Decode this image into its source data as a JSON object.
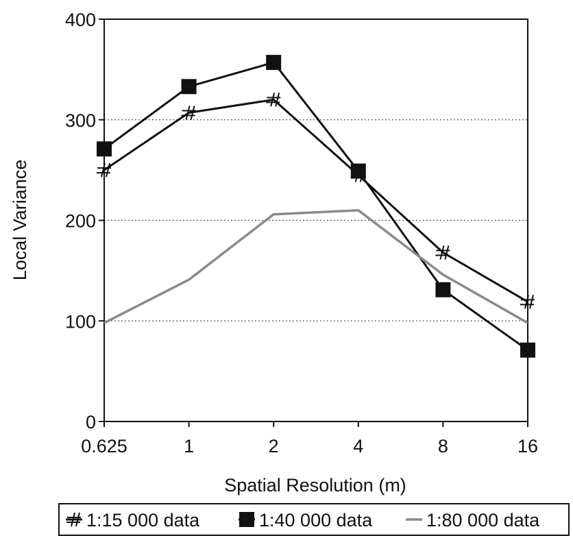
{
  "chart_data": {
    "type": "line",
    "categories": [
      "0.625",
      "1",
      "2",
      "4",
      "8",
      "16"
    ],
    "xlabel": "Spatial Resolution (m)",
    "ylabel": "Local Variance",
    "ylim": [
      0,
      400
    ],
    "yticks": [
      "0",
      "100",
      "200",
      "300",
      "400"
    ],
    "grid": "horizontal dotted",
    "legend": "bottom",
    "series": [
      {
        "name": "1:15 000 data",
        "marker": "hash",
        "color": "#111111",
        "values": [
          250,
          307,
          320,
          245,
          168,
          119
        ]
      },
      {
        "name": "1:40 000 data",
        "marker": "square",
        "color": "#111111",
        "values": [
          271,
          333,
          357,
          249,
          131,
          71
        ]
      },
      {
        "name": "1:80 000 data",
        "marker": "none",
        "color": "#8a8a8a",
        "values": [
          98,
          141,
          206,
          210,
          146,
          98
        ]
      }
    ]
  }
}
